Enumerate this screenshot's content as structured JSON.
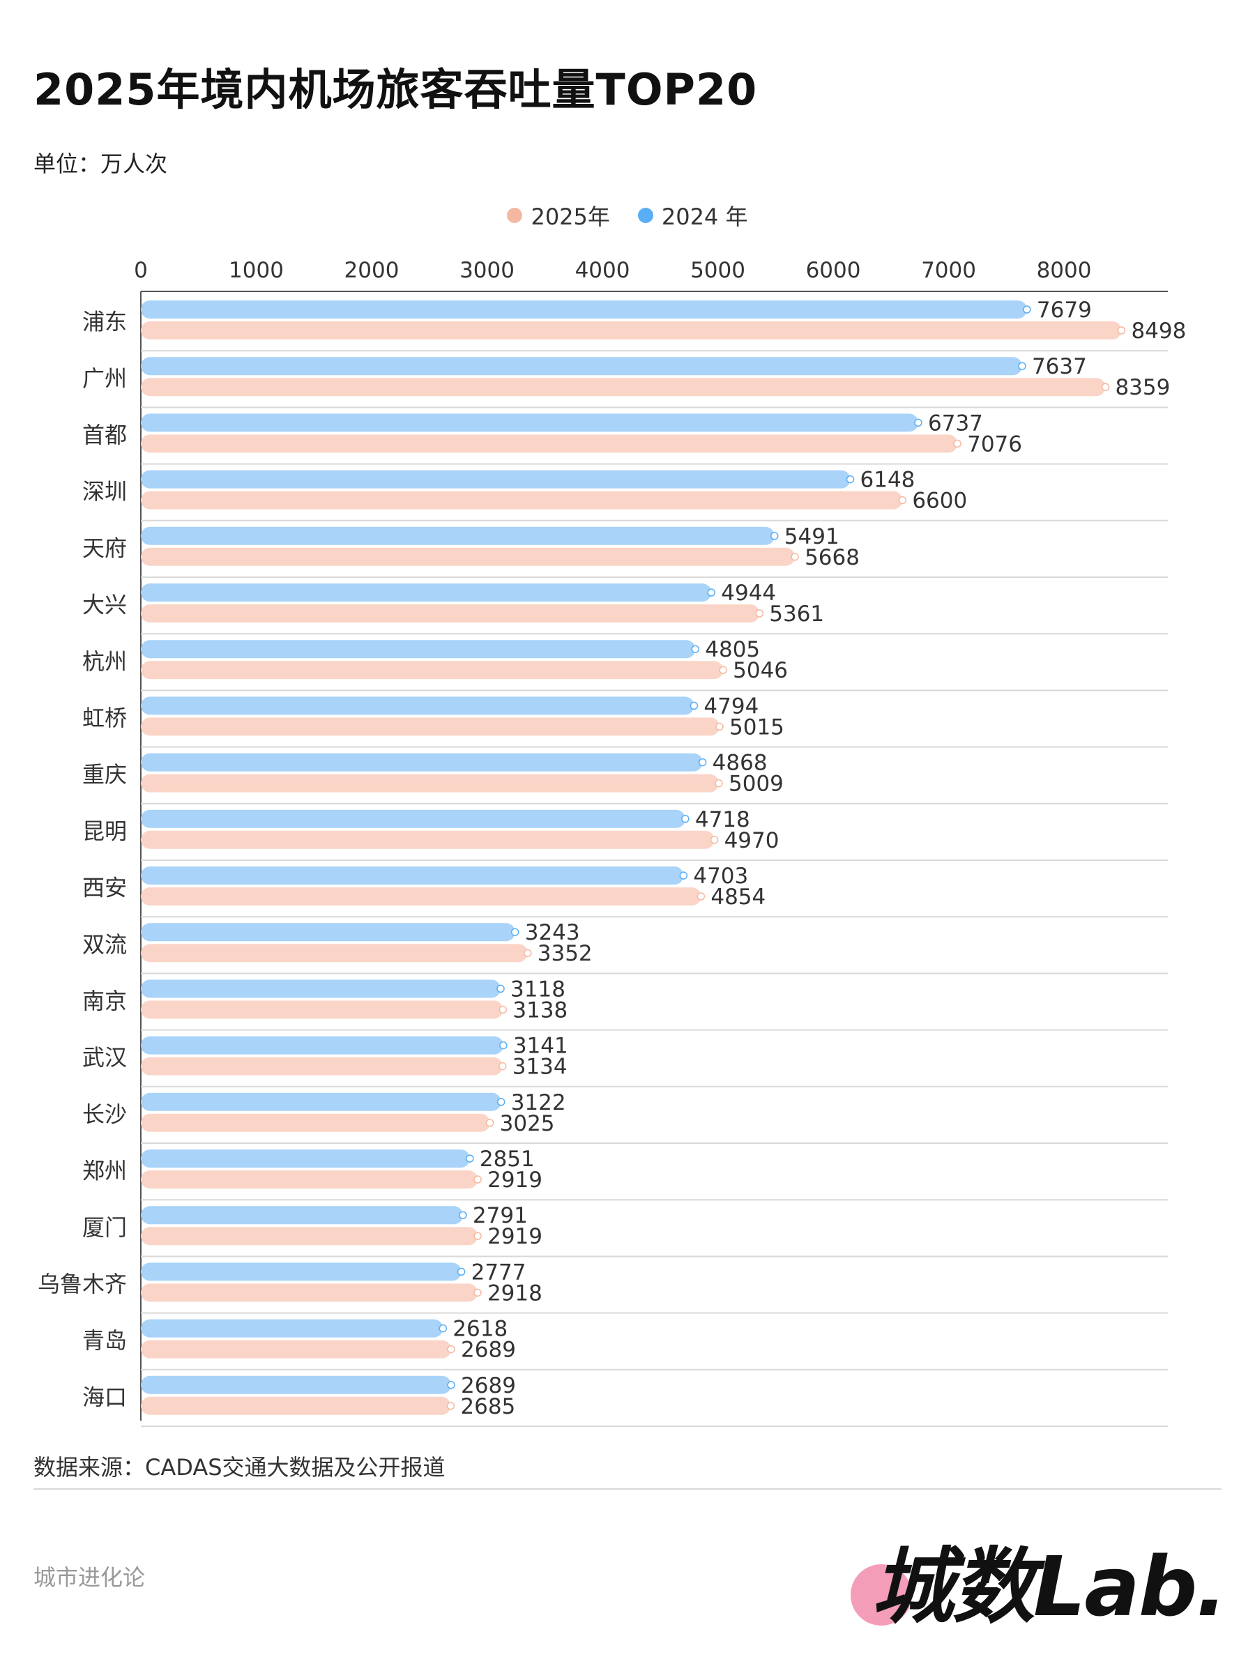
{
  "title": "2025年境内机场旅客吞吐量TOP20",
  "unit_label": "单位：万人次",
  "source_label": "数据来源：CADAS交通大数据及公开报道",
  "footer_brand": "城市进化论",
  "logo_text": "城数Lab.",
  "colors": {
    "series_2024": "#a9d3f8",
    "series_2025": "#fad5c7",
    "legend_2024": "#5aaef5",
    "legend_2025": "#f4b8a0",
    "axis": "#555555",
    "row_line": "#d9d9d9",
    "logo_circle": "#f49db8"
  },
  "chart_data": {
    "type": "bar",
    "orientation": "horizontal",
    "categories": [
      "浦东",
      "广州",
      "首都",
      "深圳",
      "天府",
      "大兴",
      "杭州",
      "虹桥",
      "重庆",
      "昆明",
      "西安",
      "双流",
      "南京",
      "武汉",
      "长沙",
      "郑州",
      "厦门",
      "乌鲁木齐",
      "青岛",
      "海口"
    ],
    "series": [
      {
        "name": "2024 年",
        "values": [
          7679,
          7637,
          6737,
          6148,
          5491,
          4944,
          4805,
          4794,
          4868,
          4718,
          4703,
          3243,
          3118,
          3141,
          3122,
          2851,
          2791,
          2777,
          2618,
          2689
        ]
      },
      {
        "name": "2025年",
        "values": [
          8498,
          8359,
          7076,
          6600,
          5668,
          5361,
          5046,
          5015,
          5009,
          4970,
          4854,
          3352,
          3138,
          3134,
          3025,
          2919,
          2919,
          2918,
          2689,
          2685
        ]
      }
    ],
    "x_ticks": [
      0,
      1000,
      2000,
      3000,
      4000,
      5000,
      6000,
      7000,
      8000
    ],
    "xlim": [
      0,
      8900
    ],
    "axis_position": "top",
    "legend": [
      {
        "label": "2025年",
        "series": "2025年"
      },
      {
        "label": "2024 年",
        "series": "2024 年"
      }
    ],
    "legend_position": "top-center",
    "grid": false,
    "data_labels": true
  }
}
